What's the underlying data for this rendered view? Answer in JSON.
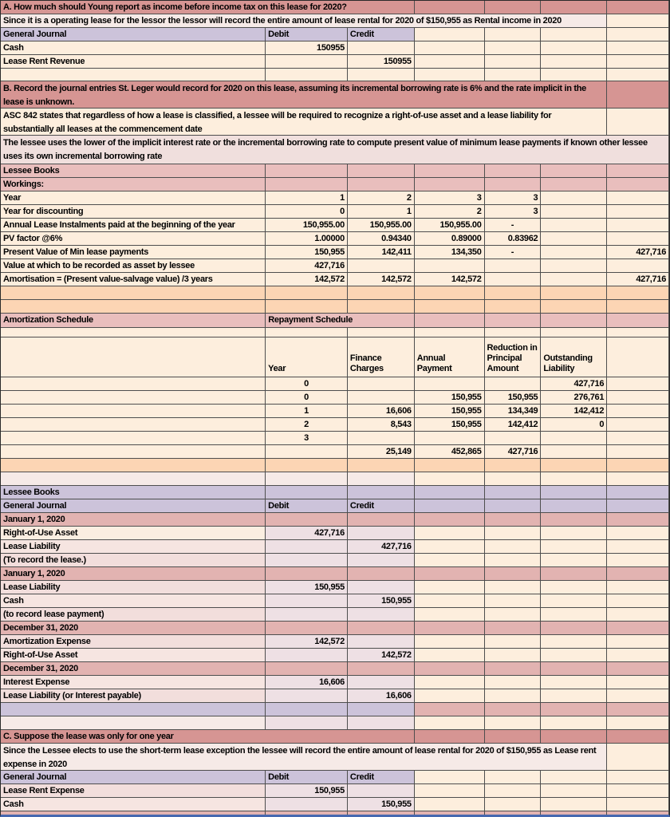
{
  "meta": {
    "description": "Excel-style lease accounting worksheet",
    "grid_line_color": "#4e4e4e",
    "bottom_bar_color": "#4668b0"
  },
  "palette": {
    "rose": "#d69593",
    "pink": "#e9bebd",
    "datepink": "#e2b3b1",
    "lavender": "#ccc3da",
    "cream": "#fdeedd",
    "cream2": "#fbeee1",
    "orange": "#fcd5b4",
    "lp": "#f2dedc",
    "lp2": "#f6e5e1",
    "lp3": "#f0dfdd",
    "paler": "#f6eae7",
    "mauve": "#eee0e4"
  },
  "columns": {
    "widths": [
      333,
      103,
      84,
      88,
      71,
      83,
      78
    ]
  },
  "rows": [
    {
      "h": 17,
      "fill": "rose",
      "cells": [
        {
          "c": 1,
          "s": 3,
          "t": "A. How much should Young report as income before income tax on this lease for 2020?",
          "n": "section-a-title"
        }
      ]
    },
    {
      "h": 17,
      "fill": "cream",
      "cells": [
        {
          "c": 1,
          "s": 6,
          "bg": "paler",
          "t": "Since it is a operating lease for the lessor the lessor will record the  entire amount of lease rental for 2020 of $150,955 as Rental income in 2020",
          "n": "section-a-note"
        }
      ]
    },
    {
      "h": 17,
      "fill": "cream",
      "cells": [
        {
          "c": 1,
          "bg": "lavender",
          "t": "General Journal",
          "n": "journal1-header-title"
        },
        {
          "c": 2,
          "bg": "lavender",
          "t": "Debit",
          "n": "journal1-debit-header"
        },
        {
          "c": 3,
          "bg": "lavender",
          "t": "Credit",
          "n": "journal1-credit-header"
        }
      ]
    },
    {
      "h": 17,
      "fill": "cream",
      "cells": [
        {
          "c": 1,
          "t": "Cash",
          "n": "journal1-cash-label"
        },
        {
          "c": 2,
          "t": "150955",
          "al": "r",
          "n": "journal1-cash-debit"
        }
      ]
    },
    {
      "h": 17,
      "fill": "cream",
      "cells": [
        {
          "c": 1,
          "t": "Lease Rent Revenue",
          "n": "journal1-revenue-label"
        },
        {
          "c": 3,
          "t": "150955",
          "al": "r",
          "n": "journal1-revenue-credit"
        }
      ]
    },
    {
      "h": 16,
      "fill": "cream",
      "cells": []
    },
    {
      "h": 34,
      "fill": "rose",
      "cells": [
        {
          "c": 1,
          "s": 6,
          "wrap": 1,
          "t": "B. Record the journal entries St. Leger would record for 2020 on this lease, assuming its incremental borrowing rate is 6% and the rate implicit in the lease is unknown.",
          "n": "section-b-title"
        }
      ]
    },
    {
      "h": 34,
      "fill": "cream",
      "cells": [
        {
          "c": 1,
          "s": 6,
          "wrap": 1,
          "t": "ASC 842 states that regardless of how a lease is classified, a lessee will be required to recognize a right-of-use asset and a lease liability for substantially all leases at the commencement date",
          "n": "asc-842-note"
        }
      ]
    },
    {
      "h": 36,
      "fill": "lp3",
      "cells": [
        {
          "c": 1,
          "s": 7,
          "wrap": 1,
          "t": "The lessee uses the lower of the implicit interest rate or the incremental borrowing rate to compute present value of minimum lease payments if known other lessee uses its own incremental borrowing rate",
          "n": "lessee-rate-note"
        }
      ]
    },
    {
      "h": 17,
      "fill": "pink",
      "cells": [
        {
          "c": 1,
          "t": "Lessee Books",
          "n": "lessee-books-header-1"
        }
      ]
    },
    {
      "h": 17,
      "fill": "pink",
      "cells": [
        {
          "c": 1,
          "t": "Workings:",
          "n": "workings-header"
        }
      ]
    },
    {
      "h": 17,
      "fill": "cream",
      "cells": [
        {
          "c": 1,
          "t": "Year",
          "n": "workings-year-label"
        },
        {
          "c": 2,
          "t": "1",
          "al": "r"
        },
        {
          "c": 3,
          "t": "2",
          "al": "r"
        },
        {
          "c": 4,
          "t": "3",
          "al": "r"
        },
        {
          "c": 5,
          "t": "3",
          "al": "r"
        }
      ]
    },
    {
      "h": 17,
      "fill": "cream",
      "cells": [
        {
          "c": 1,
          "t": "Year for discounting",
          "n": "workings-discount-label"
        },
        {
          "c": 2,
          "t": "0",
          "al": "r"
        },
        {
          "c": 3,
          "t": "1",
          "al": "r"
        },
        {
          "c": 4,
          "t": "2",
          "al": "r"
        },
        {
          "c": 5,
          "t": "3",
          "al": "r"
        }
      ]
    },
    {
      "h": 17,
      "fill": "cream",
      "cells": [
        {
          "c": 1,
          "t": "Annual Lease Instalments paid at the beginning of the year",
          "n": "workings-instalments-label"
        },
        {
          "c": 2,
          "t": "150,955.00",
          "al": "r"
        },
        {
          "c": 3,
          "t": "150,955.00",
          "al": "r"
        },
        {
          "c": 4,
          "t": "150,955.00",
          "al": "r"
        },
        {
          "c": 5,
          "t": "-",
          "al": "c"
        }
      ]
    },
    {
      "h": 17,
      "fill": "cream",
      "cells": [
        {
          "c": 1,
          "t": "PV factor @6%",
          "n": "workings-pv-factor-label"
        },
        {
          "c": 2,
          "t": "1.00000",
          "al": "r"
        },
        {
          "c": 3,
          "t": "0.94340",
          "al": "r"
        },
        {
          "c": 4,
          "t": "0.89000",
          "al": "r"
        },
        {
          "c": 5,
          "t": "0.83962",
          "al": "r"
        }
      ]
    },
    {
      "h": 17,
      "fill": "cream",
      "cells": [
        {
          "c": 1,
          "t": "Present Value of Min lease payments",
          "n": "workings-pv-label"
        },
        {
          "c": 2,
          "t": "150,955",
          "al": "r"
        },
        {
          "c": 3,
          "t": "142,411",
          "al": "r"
        },
        {
          "c": 4,
          "t": "134,350",
          "al": "r"
        },
        {
          "c": 5,
          "t": "-",
          "al": "c"
        },
        {
          "c": 7,
          "t": "427,716",
          "al": "r",
          "n": "workings-pv-total"
        }
      ]
    },
    {
      "h": 17,
      "fill": "cream",
      "cells": [
        {
          "c": 1,
          "t": "Value at which to be recorded as asset by lessee",
          "n": "workings-asset-value-label"
        },
        {
          "c": 2,
          "t": "427,716",
          "al": "r"
        }
      ]
    },
    {
      "h": 17,
      "fill": "cream",
      "cells": [
        {
          "c": 1,
          "t": "Amortisation = (Present value-salvage value) /3 years",
          "n": "workings-amortisation-label"
        },
        {
          "c": 2,
          "t": "142,572",
          "al": "r"
        },
        {
          "c": 3,
          "t": "142,572",
          "al": "r"
        },
        {
          "c": 4,
          "t": "142,572",
          "al": "r"
        },
        {
          "c": 7,
          "t": "427,716",
          "al": "r",
          "n": "workings-amortisation-total"
        }
      ]
    },
    {
      "h": 17,
      "fill": "orange",
      "cells": []
    },
    {
      "h": 17,
      "fill": "orange",
      "cells": []
    },
    {
      "h": 18,
      "fill": "pink",
      "cells": [
        {
          "c": 1,
          "t": "Amortization Schedule",
          "n": "amortization-schedule-header"
        },
        {
          "c": 2,
          "s": 2,
          "t": "Repayment Schedule",
          "n": "repayment-schedule-header"
        }
      ]
    },
    {
      "h": 12,
      "fill": "cream",
      "cells": []
    },
    {
      "h": 50,
      "fill": "cream",
      "cells": [
        {
          "c": 2,
          "t": "Year",
          "bot": 1,
          "n": "schedule-col-year"
        },
        {
          "c": 3,
          "t": "Finance Charges",
          "wrap": 1,
          "bot": 1,
          "n": "schedule-col-finance"
        },
        {
          "c": 4,
          "t": "Annual Payment",
          "wrap": 1,
          "bot": 1,
          "n": "schedule-col-payment"
        },
        {
          "c": 5,
          "t": "Reduction in Principal Amount",
          "wrap": 1,
          "bot": 1,
          "n": "schedule-col-reduction"
        },
        {
          "c": 6,
          "t": "Outstanding Liability",
          "wrap": 1,
          "bot": 1,
          "n": "schedule-col-liability"
        }
      ]
    },
    {
      "h": 17,
      "fill": "cream",
      "cells": [
        {
          "c": 2,
          "t": "0",
          "al": "c"
        },
        {
          "c": 6,
          "t": "427,716",
          "al": "r"
        }
      ]
    },
    {
      "h": 17,
      "fill": "cream",
      "cells": [
        {
          "c": 2,
          "t": "0",
          "al": "c"
        },
        {
          "c": 4,
          "t": "150,955",
          "al": "r"
        },
        {
          "c": 5,
          "t": "150,955",
          "al": "r"
        },
        {
          "c": 6,
          "t": "276,761",
          "al": "r"
        }
      ]
    },
    {
      "h": 17,
      "fill": "cream",
      "cells": [
        {
          "c": 2,
          "t": "1",
          "al": "c"
        },
        {
          "c": 3,
          "t": "16,606",
          "al": "r"
        },
        {
          "c": 4,
          "t": "150,955",
          "al": "r"
        },
        {
          "c": 5,
          "t": "134,349",
          "al": "r"
        },
        {
          "c": 6,
          "t": "142,412",
          "al": "r"
        }
      ]
    },
    {
      "h": 17,
      "fill": "cream",
      "cells": [
        {
          "c": 2,
          "t": "2",
          "al": "c"
        },
        {
          "c": 3,
          "t": "8,543",
          "al": "r"
        },
        {
          "c": 4,
          "t": "150,955",
          "al": "r"
        },
        {
          "c": 5,
          "t": "142,412",
          "al": "r"
        },
        {
          "c": 6,
          "t": "0",
          "al": "r"
        }
      ]
    },
    {
      "h": 17,
      "fill": "cream",
      "cells": [
        {
          "c": 2,
          "t": "3",
          "al": "c"
        }
      ]
    },
    {
      "h": 17,
      "fill": "cream",
      "cells": [
        {
          "c": 3,
          "t": "25,149",
          "al": "r",
          "n": "schedule-total-finance"
        },
        {
          "c": 4,
          "t": "452,865",
          "al": "r",
          "n": "schedule-total-payment"
        },
        {
          "c": 5,
          "t": "427,716",
          "al": "r",
          "n": "schedule-total-reduction"
        }
      ]
    },
    {
      "h": 17,
      "fill": "orange",
      "cells": []
    },
    {
      "h": 17,
      "fill": "cream",
      "cells": [
        {
          "c": 1,
          "bg": "paler"
        },
        {
          "c": 2,
          "bg": "paler"
        },
        {
          "c": 3,
          "bg": "paler"
        }
      ]
    },
    {
      "h": 17,
      "fill": "lavender",
      "cells": [
        {
          "c": 1,
          "t": "Lessee Books",
          "n": "lessee-books-header-2"
        }
      ]
    },
    {
      "h": 17,
      "fill": "lavender",
      "cells": [
        {
          "c": 1,
          "t": "General Journal",
          "n": "journal2-header-title"
        },
        {
          "c": 2,
          "t": "Debit",
          "n": "journal2-debit-header"
        },
        {
          "c": 3,
          "t": "Credit",
          "n": "journal2-credit-header"
        }
      ]
    },
    {
      "h": 17,
      "fill": "datepink",
      "cells": [
        {
          "c": 1,
          "t": "January 1, 2020",
          "n": "entry-date-jan1-a"
        }
      ]
    },
    {
      "h": 17,
      "fill": "cream",
      "cells": [
        {
          "c": 1,
          "bg": "cream2",
          "t": "Right-of-Use Asset"
        },
        {
          "c": 2,
          "bg": "mauve",
          "t": "427,716",
          "al": "r"
        },
        {
          "c": 3,
          "bg": "mauve"
        }
      ]
    },
    {
      "h": 17,
      "fill": "cream",
      "cells": [
        {
          "c": 1,
          "bg": "lp2",
          "t": "Lease Liability"
        },
        {
          "c": 2,
          "bg": "mauve"
        },
        {
          "c": 3,
          "bg": "mauve",
          "t": "427,716",
          "al": "r"
        }
      ]
    },
    {
      "h": 17,
      "fill": "cream",
      "cells": [
        {
          "c": 1,
          "bg": "lp",
          "t": "(To record the lease.)",
          "n": "memo-record-lease"
        },
        {
          "c": 2,
          "bg": "mauve"
        },
        {
          "c": 3,
          "bg": "mauve"
        }
      ]
    },
    {
      "h": 17,
      "fill": "datepink",
      "cells": [
        {
          "c": 1,
          "t": "January 1, 2020",
          "n": "entry-date-jan1-b"
        }
      ]
    },
    {
      "h": 17,
      "fill": "cream",
      "cells": [
        {
          "c": 1,
          "bg": "lp",
          "t": "Lease Liability"
        },
        {
          "c": 2,
          "bg": "mauve",
          "t": "150,955",
          "al": "r"
        },
        {
          "c": 3,
          "bg": "mauve"
        }
      ]
    },
    {
      "h": 17,
      "fill": "cream",
      "cells": [
        {
          "c": 1,
          "bg": "lp2",
          "t": "Cash"
        },
        {
          "c": 2,
          "bg": "mauve"
        },
        {
          "c": 3,
          "bg": "mauve",
          "t": "150,955",
          "al": "r"
        }
      ]
    },
    {
      "h": 17,
      "fill": "cream",
      "cells": [
        {
          "c": 1,
          "bg": "lp",
          "t": "(to record lease payment)",
          "n": "memo-lease-payment"
        },
        {
          "c": 2,
          "bg": "mauve"
        },
        {
          "c": 3,
          "bg": "mauve"
        }
      ]
    },
    {
      "h": 17,
      "fill": "datepink",
      "cells": [
        {
          "c": 1,
          "t": "December 31, 2020",
          "n": "entry-date-dec31-a"
        }
      ]
    },
    {
      "h": 17,
      "fill": "cream",
      "cells": [
        {
          "c": 1,
          "bg": "lp",
          "t": "Amortization Expense"
        },
        {
          "c": 2,
          "bg": "mauve",
          "t": "142,572",
          "al": "r"
        },
        {
          "c": 3,
          "bg": "mauve"
        }
      ]
    },
    {
      "h": 17,
      "fill": "cream",
      "cells": [
        {
          "c": 1,
          "bg": "lp2",
          "t": "Right-of-Use Asset"
        },
        {
          "c": 2,
          "bg": "mauve"
        },
        {
          "c": 3,
          "bg": "mauve",
          "t": "142,572",
          "al": "r"
        }
      ]
    },
    {
      "h": 17,
      "fill": "datepink",
      "cells": [
        {
          "c": 1,
          "t": "December 31, 2020",
          "n": "entry-date-dec31-b"
        }
      ]
    },
    {
      "h": 17,
      "fill": "cream",
      "cells": [
        {
          "c": 1,
          "bg": "lp2",
          "t": "Interest Expense"
        },
        {
          "c": 2,
          "bg": "mauve",
          "t": "16,606",
          "al": "r"
        },
        {
          "c": 3,
          "bg": "mauve"
        }
      ]
    },
    {
      "h": 17,
      "fill": "cream",
      "cells": [
        {
          "c": 1,
          "bg": "lp",
          "t": "Lease Liability (or Interest payable)"
        },
        {
          "c": 2,
          "bg": "mauve"
        },
        {
          "c": 3,
          "bg": "mauve",
          "t": "16,606",
          "al": "r"
        }
      ]
    },
    {
      "h": 17,
      "fill": "datepink",
      "cells": [
        {
          "c": 1,
          "bg": "lavender"
        },
        {
          "c": 2,
          "bg": "lavender"
        },
        {
          "c": 3,
          "bg": "lavender"
        }
      ]
    },
    {
      "h": 17,
      "fill": "cream",
      "cells": [
        {
          "c": 1,
          "bg": "paler"
        },
        {
          "c": 2,
          "bg": "mauve"
        },
        {
          "c": 3,
          "bg": "mauve"
        }
      ]
    },
    {
      "h": 17,
      "fill": "rose",
      "cells": [
        {
          "c": 1,
          "s": 3,
          "t": "C. Suppose the lease was only for one year",
          "n": "section-c-title"
        }
      ]
    },
    {
      "h": 34,
      "fill": "cream",
      "cells": [
        {
          "c": 1,
          "s": 6,
          "bg": "paler",
          "wrap": 1,
          "t": "Since the Lessee elects to use the short-term lease exception the lessee will record the  entire amount of lease rental for 2020 of $150,955 as Lease rent expense in 2020",
          "n": "section-c-note"
        }
      ]
    },
    {
      "h": 17,
      "fill": "cream",
      "cells": [
        {
          "c": 1,
          "bg": "lavender",
          "t": "General Journal",
          "n": "journal3-header-title"
        },
        {
          "c": 2,
          "bg": "lavender",
          "t": "Debit",
          "n": "journal3-debit-header"
        },
        {
          "c": 3,
          "bg": "lavender",
          "t": "Credit",
          "n": "journal3-credit-header"
        }
      ]
    },
    {
      "h": 17,
      "fill": "cream",
      "cells": [
        {
          "c": 1,
          "bg": "lp",
          "t": "Lease Rent Expense"
        },
        {
          "c": 2,
          "bg": "mauve",
          "t": "150,955",
          "al": "r"
        },
        {
          "c": 3,
          "bg": "mauve"
        }
      ]
    },
    {
      "h": 17,
      "fill": "cream",
      "cells": [
        {
          "c": 1,
          "bg": "lp2",
          "t": "Cash"
        },
        {
          "c": 2,
          "bg": "mauve"
        },
        {
          "c": 3,
          "bg": "mauve",
          "t": "150,955",
          "al": "r"
        }
      ]
    },
    {
      "h": 9,
      "fill": "datepink",
      "cells": []
    }
  ]
}
